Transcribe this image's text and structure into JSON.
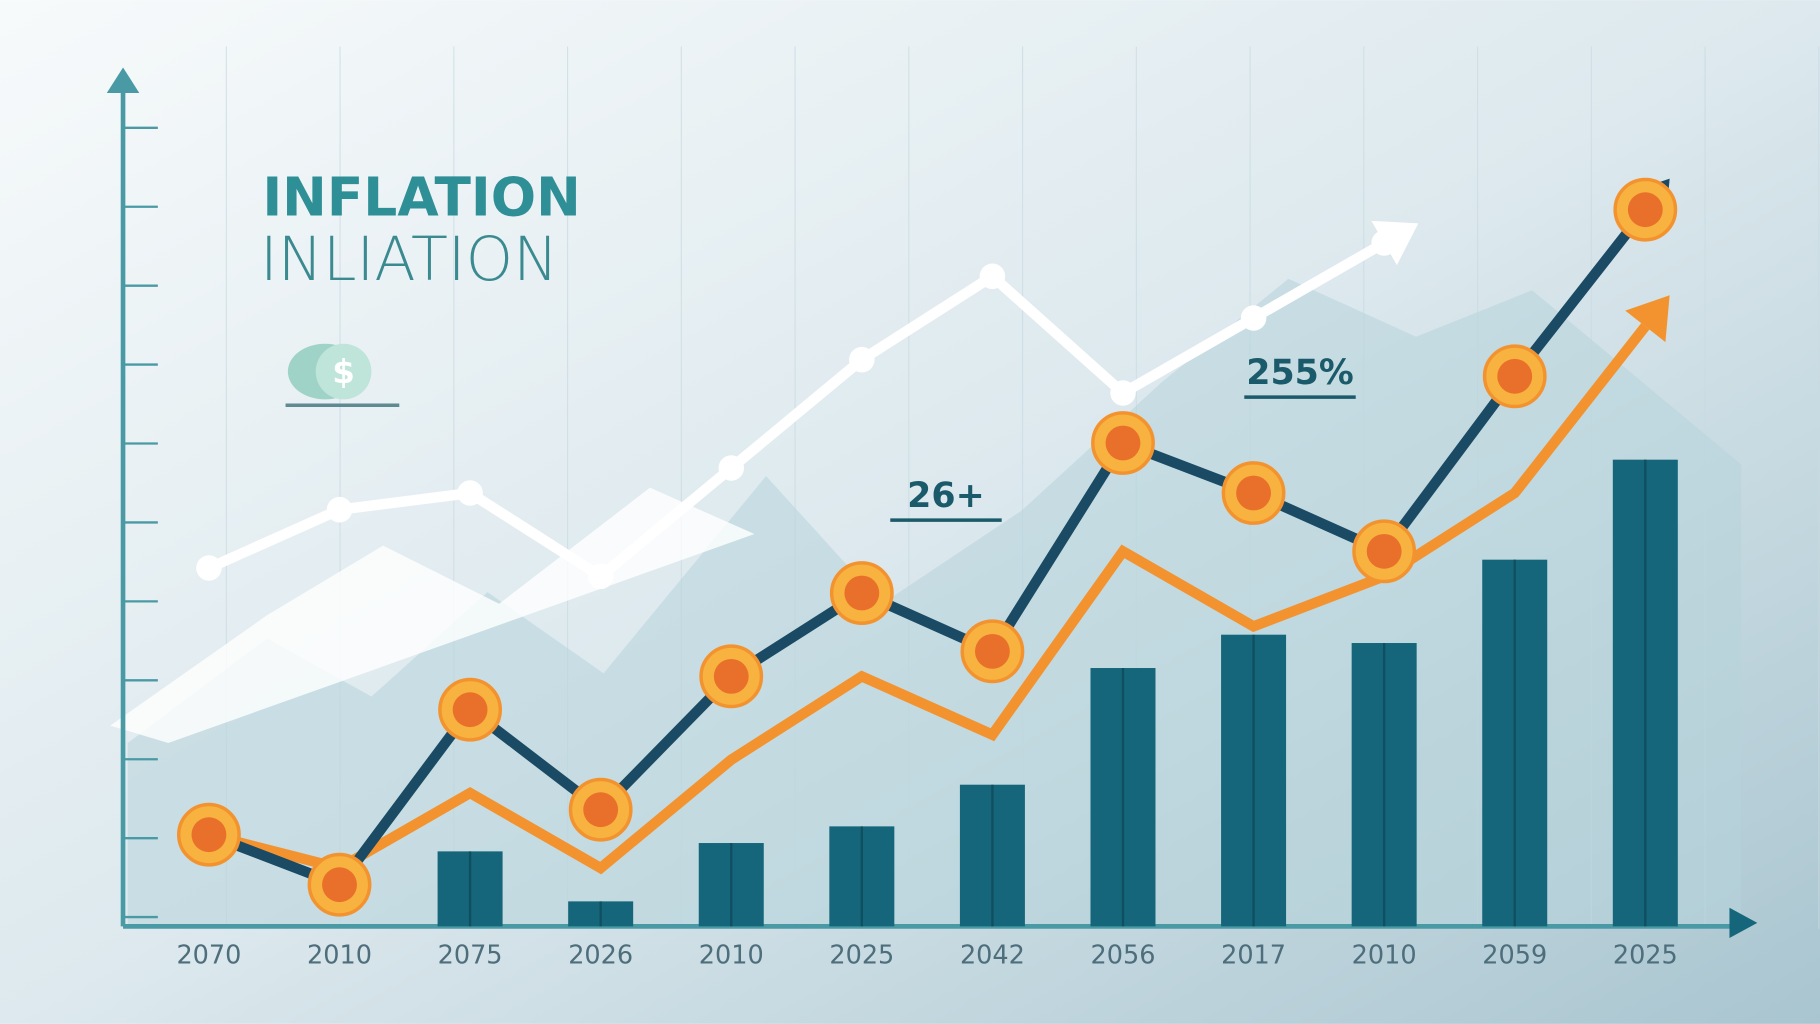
{
  "chart_data": {
    "type": "combo",
    "title": "INFLATION",
    "subtitle": "INLIATION",
    "icon_label": "$",
    "annotations": [
      "26+",
      "255%"
    ],
    "categories": [
      "2070",
      "2010",
      "2075",
      "2026",
      "2010",
      "2025",
      "2042",
      "2056",
      "2017",
      "2010",
      "2059",
      "2025"
    ],
    "ylim": [
      0,
      100
    ],
    "series": [
      {
        "type": "bar",
        "color": "#15667a",
        "values": [
          null,
          null,
          9,
          3,
          10,
          12,
          17,
          31,
          35,
          34,
          44,
          56
        ]
      },
      {
        "type": "line",
        "color": "#ffffff",
        "values": [
          43,
          50,
          52,
          42,
          55,
          68,
          78,
          64,
          73,
          82,
          null,
          null
        ]
      },
      {
        "type": "line",
        "color": "#f39330",
        "values": [
          11,
          7,
          16,
          7,
          20,
          30,
          23,
          45,
          36,
          42,
          52,
          72
        ]
      },
      {
        "type": "line",
        "color": "#1b4a64",
        "values": [
          11,
          5,
          26,
          14,
          30,
          40,
          33,
          58,
          52,
          45,
          66,
          86
        ],
        "markers": true
      }
    ]
  }
}
